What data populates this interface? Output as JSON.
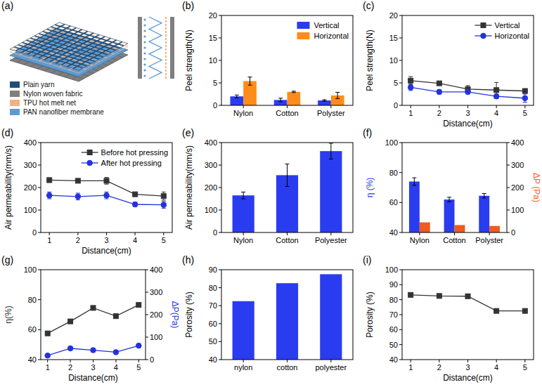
{
  "chart_data": [
    {
      "panel": "(a)",
      "type": "diagram",
      "series": [
        {
          "name": "Plain yarn",
          "color": "#1f4e79"
        },
        {
          "name": "Nylon woven fabric",
          "color": "#7f7f7f"
        },
        {
          "name": "TPU hot melt net",
          "color": "#f4b183"
        },
        {
          "name": "PAN nanofiber membrane",
          "color": "#5b9bd5"
        }
      ]
    },
    {
      "panel": "(b)",
      "type": "bar",
      "y_label": "Peel strength(N)",
      "categories": [
        "Nylon",
        "Cotton",
        "Polyster"
      ],
      "series": [
        {
          "name": "Vertical",
          "color": "#2a3cf0",
          "values": [
            2.0,
            1.2,
            1.1
          ],
          "errors": [
            0.3,
            0.4,
            0.15
          ]
        },
        {
          "name": "Horizontal",
          "color": "#ff8c1a",
          "values": [
            5.4,
            3.0,
            2.2
          ],
          "errors": [
            0.9,
            0.15,
            0.7
          ]
        }
      ],
      "ylim": [
        0,
        20
      ],
      "yticks": [
        0,
        5,
        10,
        15,
        20
      ],
      "legend": "upper right"
    },
    {
      "panel": "(c)",
      "type": "line",
      "x_label": "Distance(cm)",
      "y_label": "Peel strength(N)",
      "x": [
        1,
        2,
        3,
        4,
        5
      ],
      "xlim": [
        0.7,
        5.3
      ],
      "xticks": [
        1,
        2,
        3,
        4,
        5
      ],
      "series": [
        {
          "name": "Vertical",
          "color": "#333333",
          "marker": "square",
          "values": [
            5.5,
            4.9,
            3.6,
            3.4,
            3.2
          ],
          "errors": [
            0.9,
            0.2,
            0.8,
            1.7,
            0.4
          ]
        },
        {
          "name": "Horizontal",
          "color": "#2233dd",
          "marker": "circle",
          "values": [
            4.0,
            3.0,
            3.0,
            2.0,
            1.6
          ],
          "errors": [
            0.7,
            0.5,
            0.5,
            0.5,
            0.9
          ]
        }
      ],
      "ylim": [
        0,
        20
      ],
      "yticks": [
        0,
        5,
        10,
        15,
        20
      ],
      "legend": "upper right"
    },
    {
      "panel": "(d)",
      "type": "line",
      "x_label": "Distance(cm)",
      "y_label": "Air permeability(mm/s)",
      "x": [
        1,
        2,
        3,
        4,
        5
      ],
      "xlim": [
        0.7,
        5.3
      ],
      "xticks": [
        1,
        2,
        3,
        4,
        5
      ],
      "series": [
        {
          "name": "Before hot pressing",
          "color": "#333333",
          "marker": "square",
          "values": [
            233,
            230,
            230,
            170,
            162
          ],
          "errors": [
            10,
            5,
            15,
            5,
            18
          ]
        },
        {
          "name": "After hot pressing",
          "color": "#2233dd",
          "marker": "circle",
          "values": [
            165,
            160,
            165,
            125,
            123
          ],
          "errors": [
            15,
            15,
            15,
            10,
            15
          ]
        }
      ],
      "ylim": [
        0,
        400
      ],
      "yticks": [
        0,
        100,
        200,
        300,
        400
      ],
      "legend": "upper right"
    },
    {
      "panel": "(e)",
      "type": "bar",
      "y_label": "Air permeability(mm/s)",
      "categories": [
        "Nylon",
        "Cotton",
        "Polyester"
      ],
      "values": [
        165,
        255,
        362
      ],
      "errors": [
        15,
        50,
        35
      ],
      "color": "#2a3cf0",
      "ylim": [
        0,
        400
      ],
      "yticks": [
        0,
        100,
        200,
        300,
        400
      ]
    },
    {
      "panel": "(f)",
      "type": "bar",
      "y_label": "η (%)",
      "y2_label": "ΔP (Pa)",
      "categories": [
        "Nylon",
        "Cotton",
        "Polyster"
      ],
      "series": [
        {
          "color": "#2a3cf0",
          "values": [
            74,
            62,
            64.5
          ],
          "errors": [
            2.5,
            1.5,
            1.5
          ]
        },
        {
          "color": "#f05a1e",
          "axis": "y2",
          "values": [
            45,
            33,
            29
          ]
        }
      ],
      "ylim": [
        40,
        100
      ],
      "yticks": [
        40,
        60,
        80,
        100
      ],
      "y2lim": [
        0,
        400
      ],
      "y2ticks": [
        0,
        100,
        200,
        300,
        400
      ]
    },
    {
      "panel": "(g)",
      "type": "line",
      "x_label": "Distance(cm)",
      "y_label": "η(%)",
      "y2_label": "ΔP(Pa)",
      "x": [
        1,
        2,
        3,
        4,
        5
      ],
      "xlim": [
        0.7,
        5.3
      ],
      "xticks": [
        1,
        2,
        3,
        4,
        5
      ],
      "series": [
        {
          "color": "#333333",
          "marker": "square",
          "values": [
            57.5,
            65.5,
            74.5,
            69,
            76.5
          ]
        },
        {
          "color": "#2233dd",
          "marker": "circle",
          "axis": "y2",
          "values": [
            18,
            50,
            42,
            33,
            62
          ]
        }
      ],
      "ylim": [
        40,
        100
      ],
      "yticks": [
        40,
        60,
        80,
        100
      ],
      "y2lim": [
        0,
        400
      ],
      "y2ticks": [
        0,
        100,
        200,
        300,
        400
      ]
    },
    {
      "panel": "(h)",
      "type": "bar",
      "y_label": "Porosity (%)",
      "categories": [
        "nylon",
        "cotton",
        "polyester"
      ],
      "values": [
        72.5,
        82.5,
        87.5
      ],
      "color": "#2a3cf0",
      "ylim": [
        40,
        90
      ],
      "yticks": [
        40,
        50,
        60,
        70,
        80,
        90
      ]
    },
    {
      "panel": "(i)",
      "type": "line",
      "x_label": "Distance(cm)",
      "y_label": "Porosity (%)",
      "x": [
        1,
        2,
        3,
        4,
        5
      ],
      "xlim": [
        0.7,
        5.3
      ],
      "xticks": [
        1,
        2,
        3,
        4,
        5
      ],
      "series": [
        {
          "color": "#333333",
          "marker": "square",
          "values": [
            83.2,
            82.5,
            82.3,
            72.5,
            72.5
          ]
        }
      ],
      "ylim": [
        40,
        100
      ],
      "yticks": [
        40,
        50,
        60,
        70,
        80,
        90,
        100
      ]
    }
  ]
}
